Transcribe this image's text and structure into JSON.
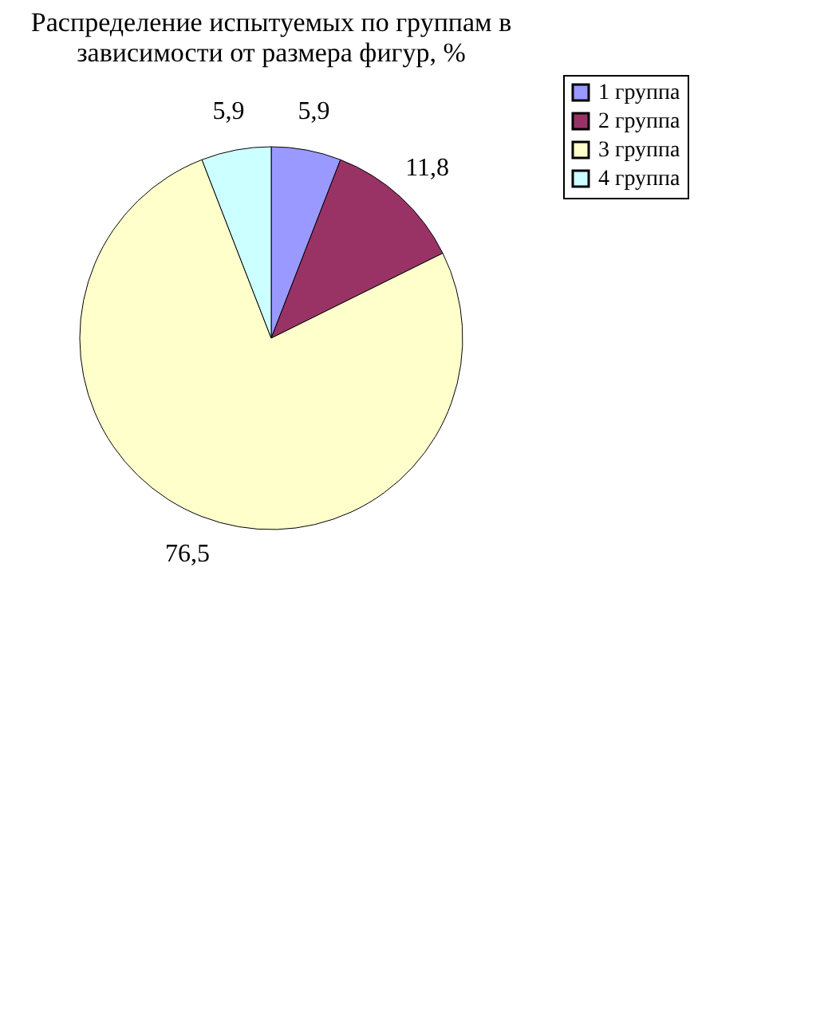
{
  "chart_data": {
    "type": "pie",
    "title": "Распределение испытуемых по группам в зависимости от размера фигур, %",
    "categories": [
      "1 группа",
      "2 группа",
      "3 группа",
      "4 группа"
    ],
    "values": [
      5.9,
      11.8,
      76.5,
      5.9
    ],
    "colors": [
      "#9999ff",
      "#993366",
      "#ffffcc",
      "#ccffff"
    ],
    "value_labels": [
      "5,9",
      "11,8",
      "76,5",
      "5,9"
    ],
    "legend": "right"
  }
}
